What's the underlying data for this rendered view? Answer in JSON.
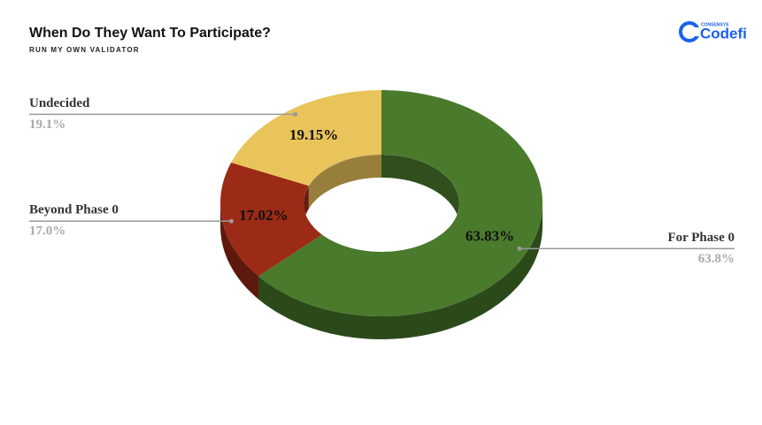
{
  "chart_data": {
    "type": "donut3d",
    "title": "When Do They Want To Participate?",
    "subtitle": "RUN MY OWN VALIDATOR",
    "categories": [
      "For Phase 0",
      "Beyond Phase 0",
      "Undecided"
    ],
    "values": [
      63.83,
      17.02,
      19.15
    ],
    "value_labels": [
      "63.83%",
      "17.02%",
      "19.15%"
    ],
    "rounded_labels": [
      "63.8%",
      "17.0%",
      "19.1%"
    ],
    "colors": [
      "#4a7a2c",
      "#9b2a16",
      "#e9c45a"
    ]
  },
  "logo": {
    "small": "CONSENSYS",
    "name": "Codefi"
  }
}
